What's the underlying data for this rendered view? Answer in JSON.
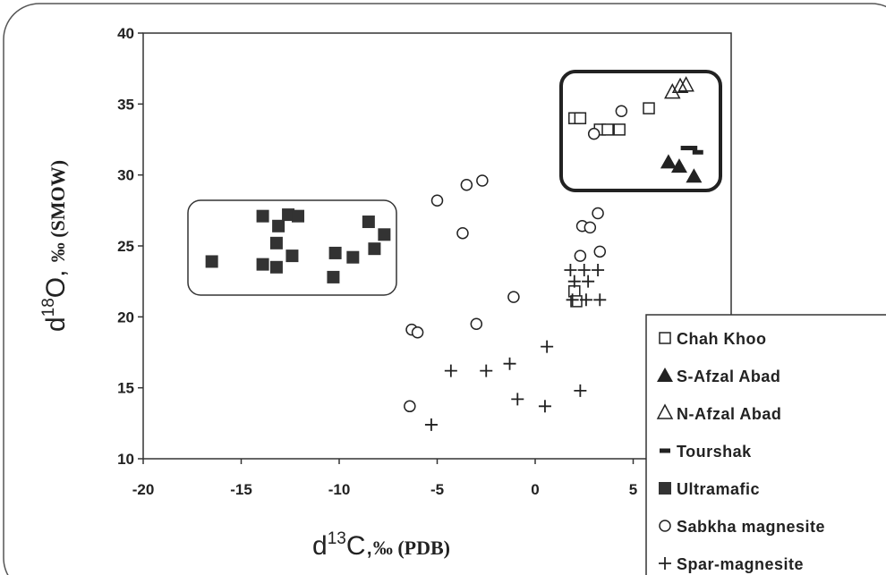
{
  "chart_data": {
    "type": "scatter",
    "x_label": [
      "d",
      "13",
      "C,",
      "‰ (PDB)"
    ],
    "y_label": [
      "d",
      "18",
      "O, ",
      "‰ (SMOW)"
    ],
    "xlim": [
      -20,
      10
    ],
    "xticks": [
      -20,
      -15,
      -10,
      -5,
      0,
      5
    ],
    "ylim": [
      10,
      40
    ],
    "yticks": [
      10,
      15,
      20,
      25,
      30,
      35,
      40
    ],
    "series": [
      {
        "name": "Chah Khoo",
        "marker": "square-open",
        "color": "#222222",
        "x": [
          2.0,
          2.3,
          3.3,
          3.7,
          4.3,
          5.8,
          2.0,
          2.1
        ],
        "values": [
          34.0,
          34.0,
          33.2,
          33.2,
          33.2,
          34.7,
          21.8,
          21.1
        ]
      },
      {
        "name": "S-Afzal Abad",
        "marker": "triangle-filled",
        "color": "#222222",
        "x": [
          6.8,
          7.35,
          8.1
        ],
        "values": [
          30.9,
          30.6,
          29.9
        ]
      },
      {
        "name": "N-Afzal Abad",
        "marker": "triangle-open",
        "color": "#222222",
        "x": [
          7.0,
          7.4,
          7.7
        ],
        "values": [
          35.8,
          36.2,
          36.3
        ]
      },
      {
        "name": "Tourshak",
        "marker": "dash",
        "color": "#222222",
        "x": [
          7.7,
          8.0,
          8.3
        ],
        "values": [
          31.9,
          31.9,
          31.6
        ]
      },
      {
        "name": "Ultramafic",
        "marker": "square-filled",
        "color": "#333333",
        "x": [
          -16.5,
          -13.9,
          -13.1,
          -12.6,
          -12.1,
          -13.2,
          -13.9,
          -13.2,
          -12.4,
          -10.2,
          -10.3,
          -9.3,
          -8.5,
          -8.2,
          -7.7
        ],
        "values": [
          23.9,
          27.1,
          26.4,
          27.2,
          27.1,
          25.2,
          23.7,
          23.5,
          24.3,
          24.5,
          22.8,
          24.2,
          26.7,
          24.8,
          25.8
        ]
      },
      {
        "name": "Sabkha magnesite",
        "marker": "circle-open",
        "color": "#222222",
        "x": [
          -5.0,
          -3.5,
          -2.7,
          -3.7,
          -1.1,
          -3.0,
          -6.3,
          -6.0,
          -6.4,
          3.0,
          4.4,
          2.4,
          2.8,
          3.2,
          2.3,
          3.3
        ],
        "values": [
          28.2,
          29.3,
          29.6,
          25.9,
          21.4,
          19.5,
          19.1,
          18.9,
          13.7,
          32.9,
          34.5,
          26.4,
          26.3,
          27.3,
          24.3,
          24.6
        ]
      },
      {
        "name": "Spar-magnesite",
        "marker": "plus",
        "color": "#222222",
        "x": [
          0.6,
          -1.3,
          -2.5,
          -4.3,
          -0.9,
          0.5,
          2.3,
          -5.3,
          1.8,
          2.5,
          3.2,
          2.0,
          2.7,
          1.9,
          2.6,
          3.3
        ],
        "values": [
          17.9,
          16.7,
          16.2,
          16.2,
          14.2,
          13.7,
          14.8,
          12.4,
          23.3,
          23.3,
          23.3,
          22.5,
          22.5,
          21.2,
          21.2,
          21.2
        ]
      }
    ]
  }
}
